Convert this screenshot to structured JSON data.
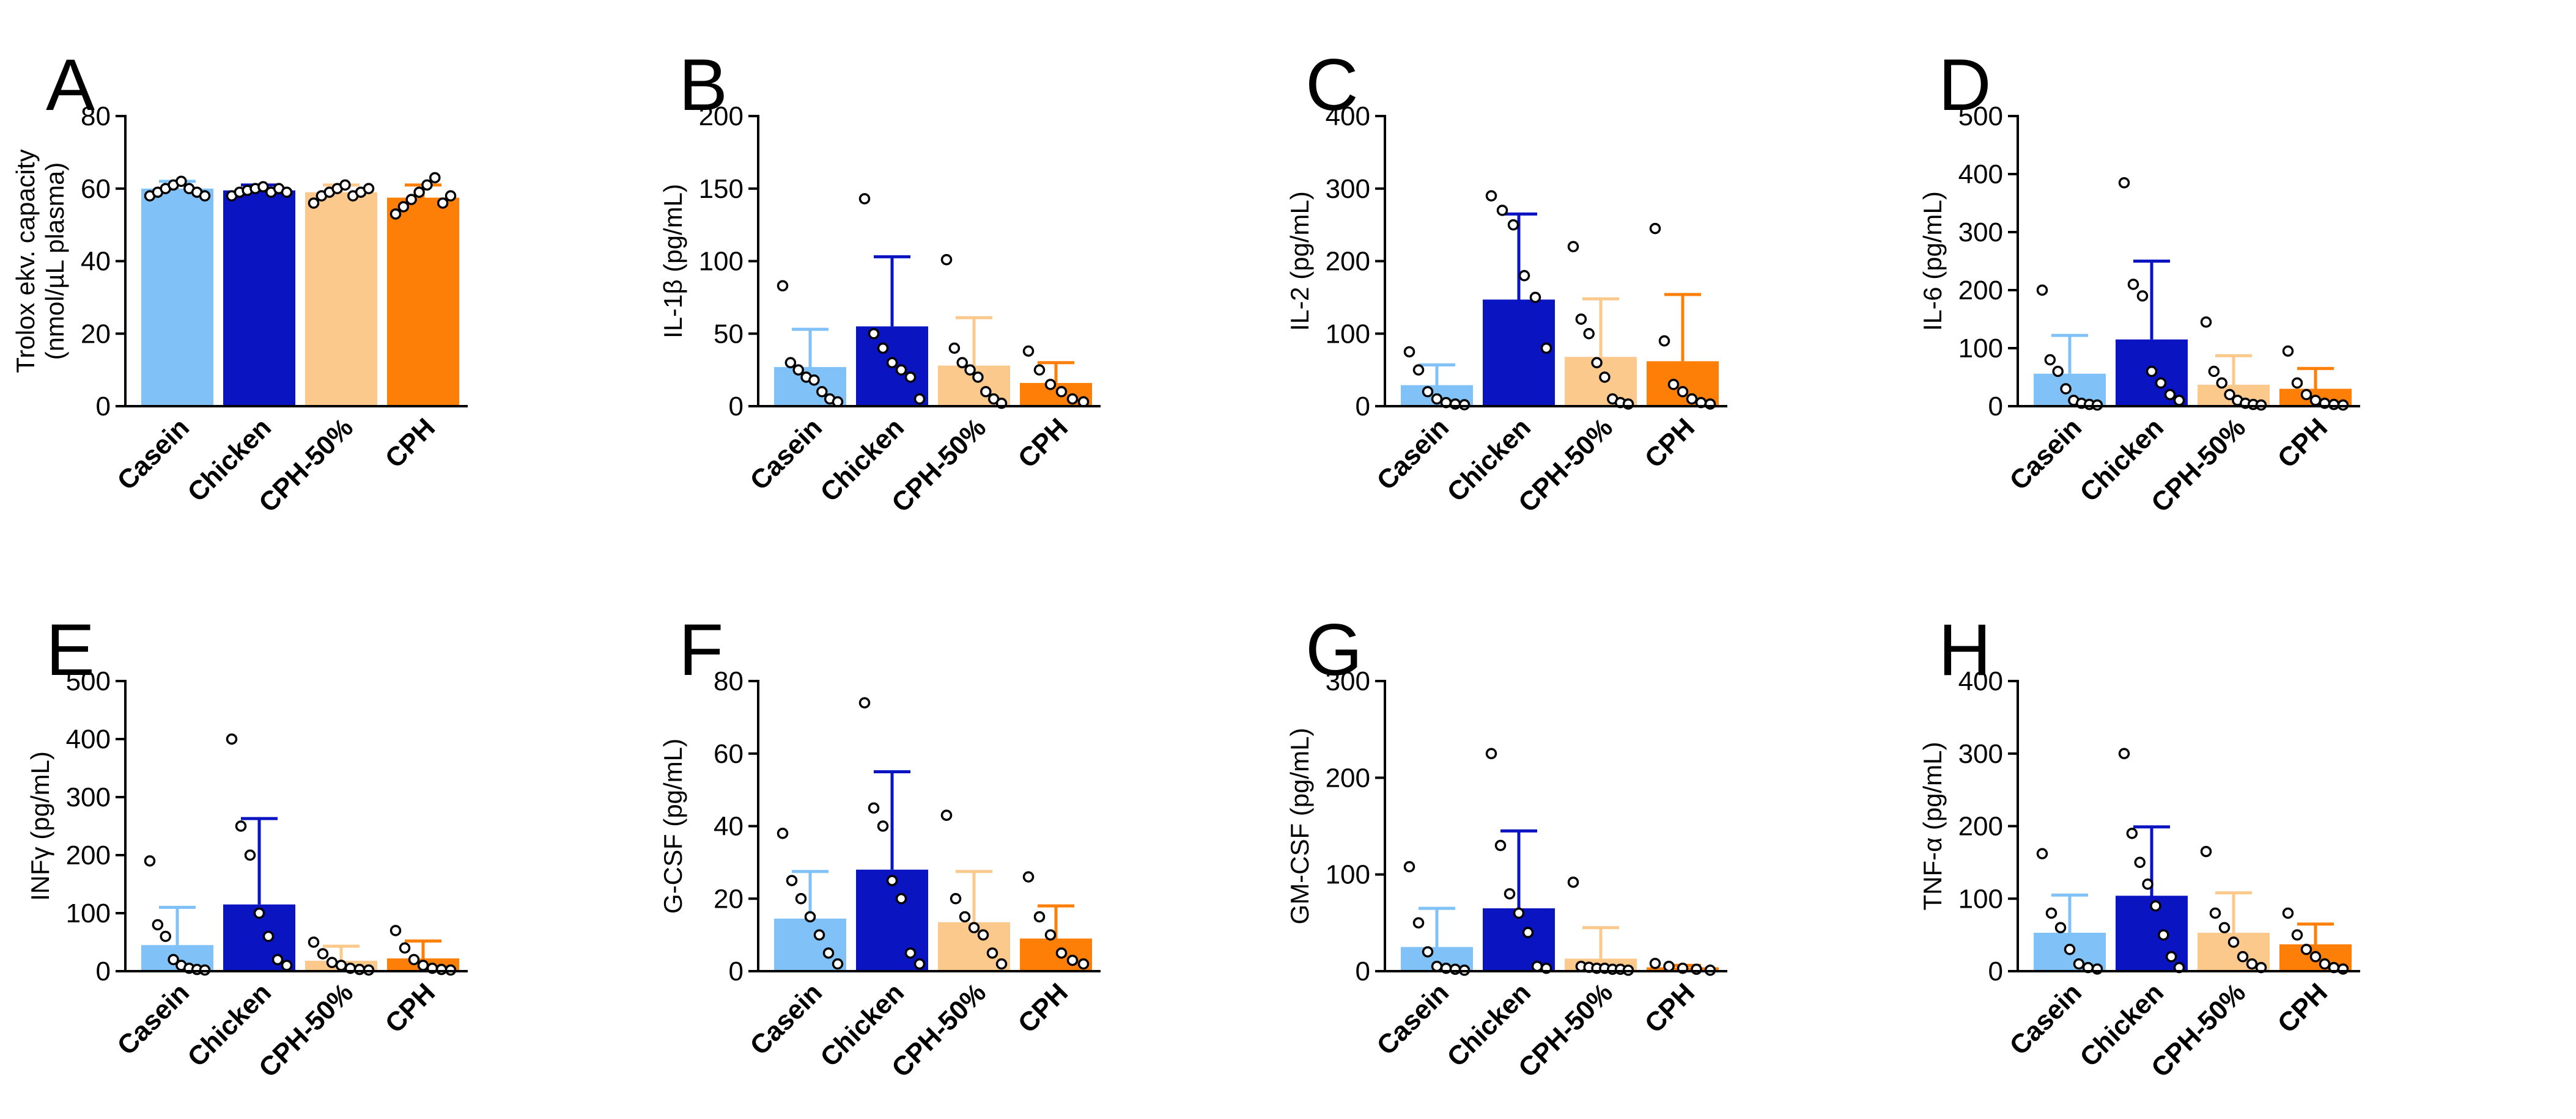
{
  "figure": {
    "colors": {
      "Casein": "#80c2f7",
      "Chicken": "#0a14c0",
      "CPH-50%": "#fcc98d",
      "CPH": "#fd7f07"
    },
    "axis_color": "#000000",
    "dot_fill": "#ffffff"
  },
  "chart_data": [
    {
      "type": "bar",
      "panel": "A",
      "ylabel_lines": [
        "Trolox ekv. capacity",
        "(nmol/µL plasma)"
      ],
      "categories": [
        "Casein",
        "Chicken",
        "CPH-50%",
        "CPH"
      ],
      "values": [
        60,
        59.5,
        59,
        57.5
      ],
      "errors": [
        2,
        1.5,
        2,
        3.5
      ],
      "ylim": [
        0,
        80
      ],
      "yticks": [
        0,
        20,
        40,
        60,
        80
      ],
      "points": [
        [
          58,
          59,
          60,
          61,
          62,
          60,
          59,
          58
        ],
        [
          58,
          59,
          59.5,
          60,
          60.5,
          59,
          60,
          59
        ],
        [
          56,
          58,
          59,
          60,
          61,
          58,
          59,
          60
        ],
        [
          53,
          55,
          57,
          59,
          61,
          63,
          56,
          58
        ]
      ]
    },
    {
      "type": "bar",
      "panel": "B",
      "ylabel_lines": [
        "IL-1β (pg/mL)"
      ],
      "categories": [
        "Casein",
        "Chicken",
        "CPH-50%",
        "CPH"
      ],
      "values": [
        27,
        55,
        28,
        16
      ],
      "errors": [
        26,
        48,
        33,
        14
      ],
      "ylim": [
        0,
        200
      ],
      "yticks": [
        0,
        50,
        100,
        150,
        200
      ],
      "points": [
        [
          83,
          30,
          25,
          20,
          18,
          10,
          5,
          3
        ],
        [
          143,
          50,
          40,
          30,
          25,
          20,
          5
        ],
        [
          101,
          40,
          30,
          25,
          20,
          10,
          5,
          2
        ],
        [
          38,
          25,
          15,
          10,
          5,
          3
        ]
      ]
    },
    {
      "type": "bar",
      "panel": "C",
      "ylabel_lines": [
        "IL-2 (pg/mL)"
      ],
      "categories": [
        "Casein",
        "Chicken",
        "CPH-50%",
        "CPH"
      ],
      "values": [
        29,
        147,
        68,
        62
      ],
      "errors": [
        28,
        118,
        80,
        92
      ],
      "ylim": [
        0,
        400
      ],
      "yticks": [
        0,
        100,
        200,
        300,
        400
      ],
      "points": [
        [
          75,
          50,
          20,
          10,
          5,
          3,
          2
        ],
        [
          290,
          270,
          250,
          180,
          150,
          80
        ],
        [
          220,
          120,
          100,
          60,
          40,
          10,
          5,
          3
        ],
        [
          245,
          90,
          30,
          20,
          10,
          5,
          3
        ]
      ]
    },
    {
      "type": "bar",
      "panel": "D",
      "ylabel_lines": [
        "IL-6 (pg/mL)"
      ],
      "categories": [
        "Casein",
        "Chicken",
        "CPH-50%",
        "CPH"
      ],
      "values": [
        56,
        115,
        37,
        30
      ],
      "errors": [
        66,
        135,
        50,
        35
      ],
      "ylim": [
        0,
        500
      ],
      "yticks": [
        0,
        100,
        200,
        300,
        400,
        500
      ],
      "points": [
        [
          200,
          80,
          60,
          30,
          10,
          5,
          3,
          2
        ],
        [
          385,
          210,
          190,
          60,
          40,
          20,
          10
        ],
        [
          145,
          60,
          40,
          20,
          10,
          5,
          3,
          2
        ],
        [
          95,
          40,
          20,
          10,
          5,
          3,
          2
        ]
      ]
    },
    {
      "type": "bar",
      "panel": "E",
      "ylabel_lines": [
        "INFγ (pg/mL)"
      ],
      "categories": [
        "Casein",
        "Chicken",
        "CPH-50%",
        "CPH"
      ],
      "values": [
        45,
        115,
        18,
        22
      ],
      "errors": [
        65,
        148,
        25,
        30
      ],
      "ylim": [
        0,
        500
      ],
      "yticks": [
        0,
        100,
        200,
        300,
        400,
        500
      ],
      "points": [
        [
          190,
          80,
          60,
          20,
          10,
          5,
          3,
          2
        ],
        [
          400,
          250,
          200,
          100,
          60,
          20,
          10
        ],
        [
          50,
          30,
          15,
          10,
          5,
          3,
          2
        ],
        [
          70,
          40,
          20,
          10,
          5,
          3,
          2
        ]
      ]
    },
    {
      "type": "bar",
      "panel": "F",
      "ylabel_lines": [
        "G-CSF (pg/mL)"
      ],
      "categories": [
        "Casein",
        "Chicken",
        "CPH-50%",
        "CPH"
      ],
      "values": [
        14.5,
        28,
        13.5,
        9
      ],
      "errors": [
        13,
        27,
        14,
        9
      ],
      "ylim": [
        0,
        80
      ],
      "yticks": [
        0,
        20,
        40,
        60,
        80
      ],
      "points": [
        [
          38,
          25,
          20,
          15,
          10,
          5,
          2
        ],
        [
          74,
          45,
          40,
          25,
          20,
          5,
          2
        ],
        [
          43,
          20,
          15,
          12,
          10,
          5,
          2
        ],
        [
          26,
          15,
          10,
          5,
          3,
          2
        ]
      ]
    },
    {
      "type": "bar",
      "panel": "G",
      "ylabel_lines": [
        "GM-CSF (pg/mL)"
      ],
      "categories": [
        "Casein",
        "Chicken",
        "CPH-50%",
        "CPH"
      ],
      "values": [
        25,
        65,
        13,
        4
      ],
      "errors": [
        40,
        80,
        32,
        2
      ],
      "ylim": [
        0,
        300
      ],
      "yticks": [
        0,
        100,
        200,
        300
      ],
      "points": [
        [
          108,
          50,
          20,
          5,
          3,
          2,
          1
        ],
        [
          225,
          130,
          80,
          60,
          40,
          5,
          3
        ],
        [
          92,
          5,
          4,
          3,
          3,
          2,
          2,
          1
        ],
        [
          8,
          5,
          3,
          2,
          1
        ]
      ]
    },
    {
      "type": "bar",
      "panel": "H",
      "ylabel_lines": [
        "TNF-α (pg/mL)"
      ],
      "categories": [
        "Casein",
        "Chicken",
        "CPH-50%",
        "CPH"
      ],
      "values": [
        53,
        104,
        53,
        37
      ],
      "errors": [
        52,
        95,
        55,
        28
      ],
      "ylim": [
        0,
        400
      ],
      "yticks": [
        0,
        100,
        200,
        300,
        400
      ],
      "points": [
        [
          162,
          80,
          60,
          30,
          10,
          5,
          3
        ],
        [
          300,
          190,
          150,
          120,
          90,
          50,
          20,
          5
        ],
        [
          165,
          80,
          60,
          40,
          20,
          10,
          5
        ],
        [
          80,
          50,
          30,
          20,
          10,
          5,
          3
        ]
      ]
    }
  ]
}
